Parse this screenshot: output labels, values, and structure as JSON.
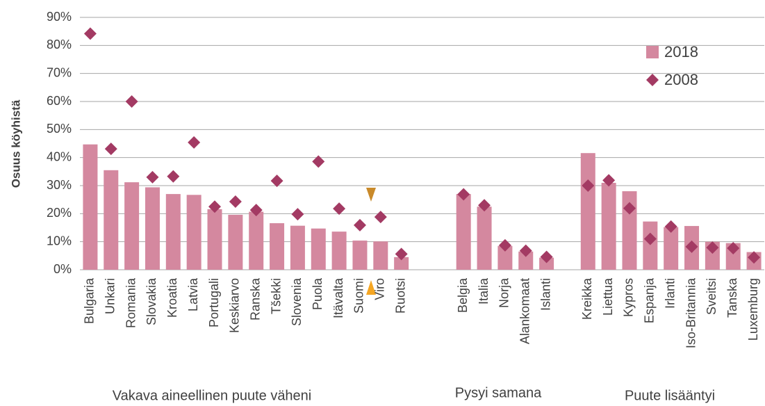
{
  "chart_data": {
    "type": "bar",
    "y_label": "Osuus köyhistä",
    "categories": [
      "Bulgaria",
      "Unkari",
      "Romania",
      "Slovakia",
      "Kroatia",
      "Latvia",
      "Portugali",
      "Keskiarvo",
      "Ranska",
      "Tšekki",
      "Slovenia",
      "Puola",
      "Itävalta",
      "Suomi",
      "Viro",
      "Ruotsi",
      null,
      null,
      "Belgia",
      "Italia",
      "Norja",
      "Alankomaat",
      "Islanti",
      null,
      "Kreikka",
      "Liettua",
      "Kypros",
      "Espanja",
      "Irlanti",
      "Iso-Britannia",
      "Sveitsi",
      "Tanska",
      "Luxemburg"
    ],
    "series": [
      {
        "name": "2018",
        "type": "bar",
        "color": "#d4889f",
        "values": [
          44.7,
          35.5,
          31.2,
          29.4,
          27,
          26.7,
          21.6,
          19.6,
          20.7,
          16.6,
          15.7,
          14.7,
          13.6,
          10.4,
          10.1,
          4.5,
          null,
          null,
          27,
          22.5,
          8.5,
          6.5,
          4.3,
          null,
          41.6,
          31,
          28,
          17.2,
          15.2,
          15.6,
          10,
          9.5,
          6.3
        ]
      },
      {
        "name": "2008",
        "type": "scatter",
        "color": "#a33a63",
        "values": [
          84.2,
          43.1,
          60,
          33,
          33.3,
          45.4,
          22.5,
          24.3,
          21.3,
          31.7,
          19.8,
          38.6,
          21.8,
          15.9,
          18.8,
          5.6,
          null,
          null,
          26.9,
          23,
          8.7,
          6.8,
          4.6,
          null,
          30,
          31.9,
          21.9,
          11,
          15.4,
          8.2,
          7.9,
          7.7,
          4.4
        ]
      }
    ],
    "group_labels": [
      "Vakava aineellinen puute väheni",
      "Pysyi samana",
      "Puute lisääntyi"
    ],
    "ylim": [
      0,
      90
    ],
    "yticks": [
      {
        "value": 0,
        "label": "0%"
      },
      {
        "value": 10,
        "label": "10%"
      },
      {
        "value": 20,
        "label": "20%"
      },
      {
        "value": 30,
        "label": "30%"
      },
      {
        "value": 40,
        "label": "40%"
      },
      {
        "value": 50,
        "label": "50%"
      },
      {
        "value": 60,
        "label": "60%"
      },
      {
        "value": 70,
        "label": "70%"
      },
      {
        "value": 80,
        "label": "80%"
      },
      {
        "value": 90,
        "label": "90%"
      }
    ],
    "grid": true,
    "legend": "top-right"
  }
}
